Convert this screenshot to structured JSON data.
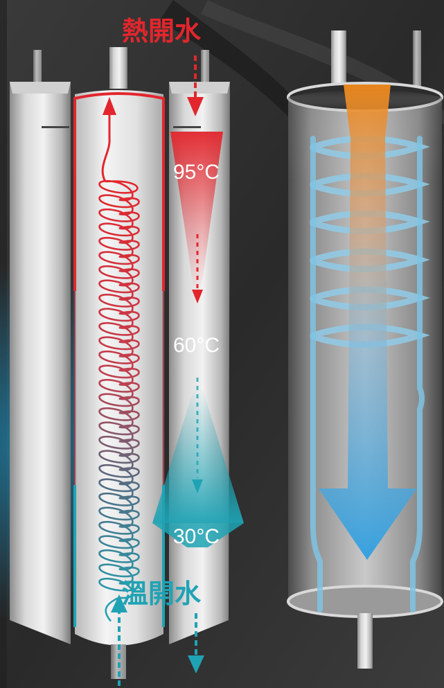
{
  "labels": {
    "hot_water": "熱開水",
    "warm_water": "溫開水",
    "temp_high": "95°C",
    "temp_mid": "60°C",
    "temp_low": "30°C"
  },
  "colors": {
    "hot": "#e2262d",
    "warm": "#1fa3b4",
    "flow_blue": "#2f9fe0",
    "flow_orange": "#f08a1c",
    "coil_blue": "#7fc3e3",
    "background": "#2b2b2b"
  }
}
